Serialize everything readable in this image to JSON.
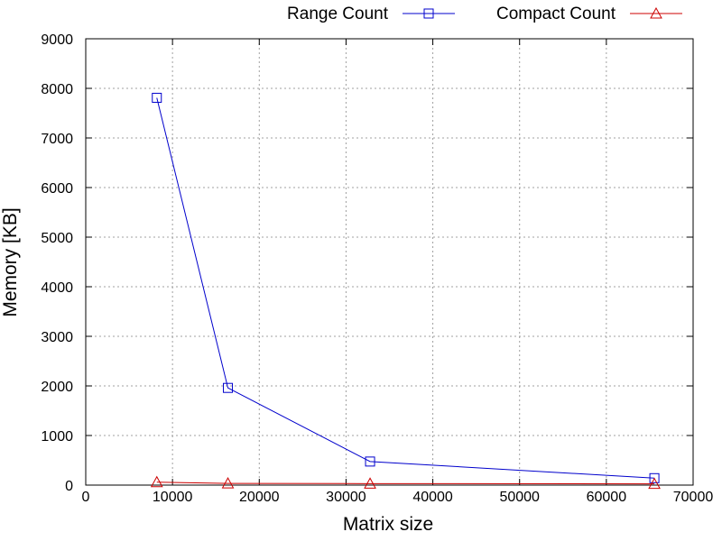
{
  "chart_data": {
    "type": "line",
    "title": "",
    "xlabel": "Matrix size",
    "ylabel": "Memory [KB]",
    "xlim": [
      0,
      70000
    ],
    "ylim": [
      0,
      9000
    ],
    "x_ticks": [
      0,
      10000,
      20000,
      30000,
      40000,
      50000,
      60000,
      70000
    ],
    "y_ticks": [
      0,
      1000,
      2000,
      3000,
      4000,
      5000,
      6000,
      7000,
      8000,
      9000
    ],
    "x_tick_labels": [
      "0",
      "10000",
      "20000",
      "30000",
      "40000",
      "50000",
      "60000",
      "70000"
    ],
    "y_tick_labels": [
      "0",
      "1000",
      "2000",
      "3000",
      "4000",
      "5000",
      "6000",
      "7000",
      "8000",
      "9000"
    ],
    "grid": true,
    "legend_position": "top, outside plot",
    "series": [
      {
        "name": "Range Count",
        "color": "#0000cc",
        "marker": "square",
        "x": [
          8192,
          16384,
          32768,
          65536
        ],
        "y": [
          7810,
          1960,
          475,
          140
        ]
      },
      {
        "name": "Compact Count",
        "color": "#cc0000",
        "marker": "triangle",
        "x": [
          8192,
          16384,
          32768,
          65536
        ],
        "y": [
          60,
          35,
          30,
          25
        ]
      }
    ]
  }
}
